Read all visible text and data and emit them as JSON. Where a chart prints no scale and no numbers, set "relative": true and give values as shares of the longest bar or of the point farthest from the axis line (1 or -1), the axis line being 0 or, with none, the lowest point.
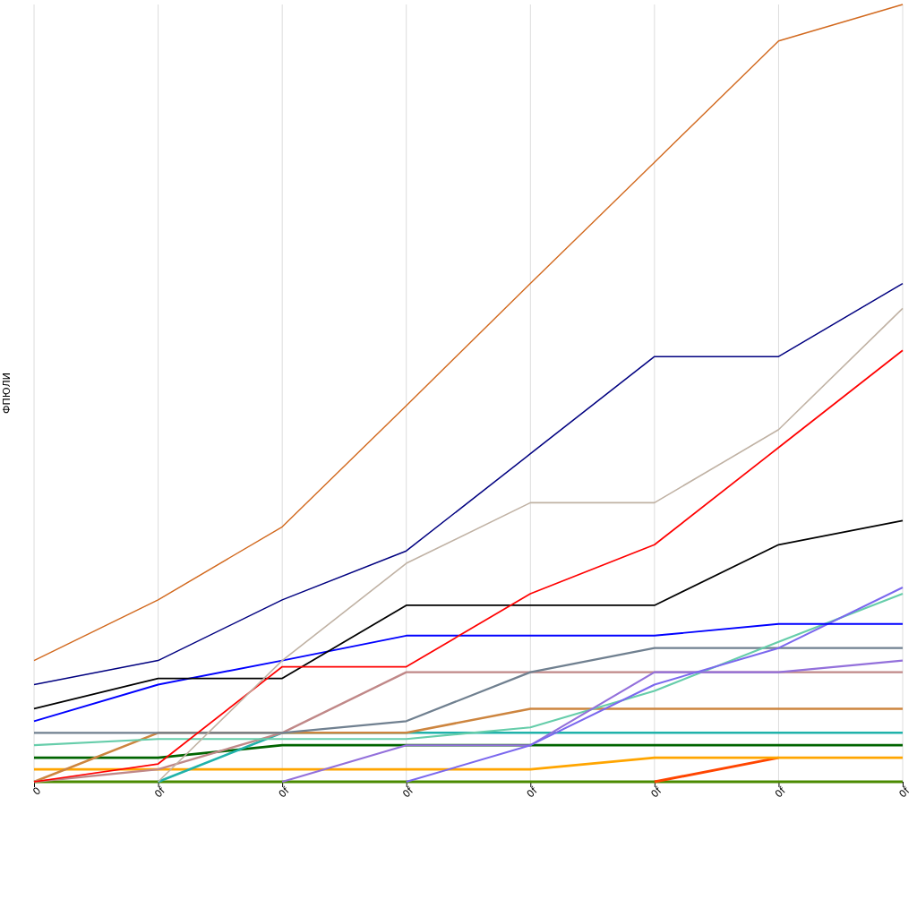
{
  "chart_data": {
    "type": "line",
    "ylabel": "ФПЮЛИ",
    "categories": [
      "0",
      "0f",
      "0f",
      "0f",
      "0f",
      "0f",
      "0f",
      "0f"
    ],
    "relative": true,
    "grid": "x",
    "marker": "none",
    "line_style": "solid",
    "series": [
      {
        "color": "#4a8a00",
        "values": [
          0,
          0,
          0,
          0,
          0,
          0,
          0,
          0
        ]
      },
      {
        "color": "#ff4500",
        "values": [
          null,
          null,
          null,
          null,
          null,
          0,
          0.031,
          null
        ]
      },
      {
        "color": "#ffa500",
        "values": [
          0.016,
          0.016,
          0.016,
          0.016,
          0.016,
          0.031,
          0.031,
          0.031
        ]
      },
      {
        "color": "#006400",
        "values": [
          0.031,
          0.031,
          0.047,
          0.047,
          0.047,
          0.047,
          0.047,
          0.047
        ]
      },
      {
        "color": "#20b2aa",
        "values": [
          null,
          0,
          0.063,
          0.063,
          0.063,
          0.063,
          0.063,
          0.063
        ]
      },
      {
        "color": "#cd853f",
        "values": [
          0,
          0.063,
          0.063,
          0.063,
          0.094,
          0.094,
          0.094,
          0.094
        ]
      },
      {
        "color": "#c08888",
        "values": [
          0,
          0.016,
          0.063,
          0.141,
          0.141,
          0.141,
          0.141,
          0.141
        ]
      },
      {
        "color": "#708090",
        "values": [
          0.063,
          0.063,
          0.063,
          0.078,
          0.141,
          0.172,
          0.172,
          0.172
        ]
      },
      {
        "color": "#66cdaa",
        "values": [
          0.047,
          0.055,
          0.055,
          0.055,
          0.07,
          0.117,
          0.18,
          0.242
        ]
      },
      {
        "color": "#9370db",
        "values": [
          null,
          null,
          0,
          0.047,
          0.047,
          0.141,
          0.141,
          0.156
        ]
      },
      {
        "color": "#7b68ee",
        "values": [
          null,
          null,
          null,
          0,
          0.047,
          0.125,
          0.172,
          0.25
        ]
      },
      {
        "color": "#0000ff",
        "values": [
          0.078,
          0.125,
          0.156,
          0.188,
          0.188,
          0.188,
          0.203,
          0.203
        ]
      },
      {
        "color": "#000000",
        "values": [
          0.094,
          0.133,
          0.133,
          0.227,
          0.227,
          0.227,
          0.305,
          0.336
        ]
      },
      {
        "color": "#ff0000",
        "values": [
          0,
          0.023,
          0.148,
          0.148,
          0.242,
          0.305,
          0.43,
          0.555
        ]
      },
      {
        "color": "#c0b2a4",
        "values": [
          null,
          0,
          0.156,
          0.281,
          0.359,
          0.359,
          0.453,
          0.609
        ]
      },
      {
        "color": "#000080",
        "values": [
          0.125,
          0.156,
          0.234,
          0.297,
          0.422,
          0.547,
          0.547,
          0.641
        ]
      },
      {
        "color": "#d2691e",
        "values": [
          0.156,
          0.234,
          0.328,
          0.484,
          0.641,
          0.797,
          0.953,
          1
        ]
      }
    ]
  }
}
